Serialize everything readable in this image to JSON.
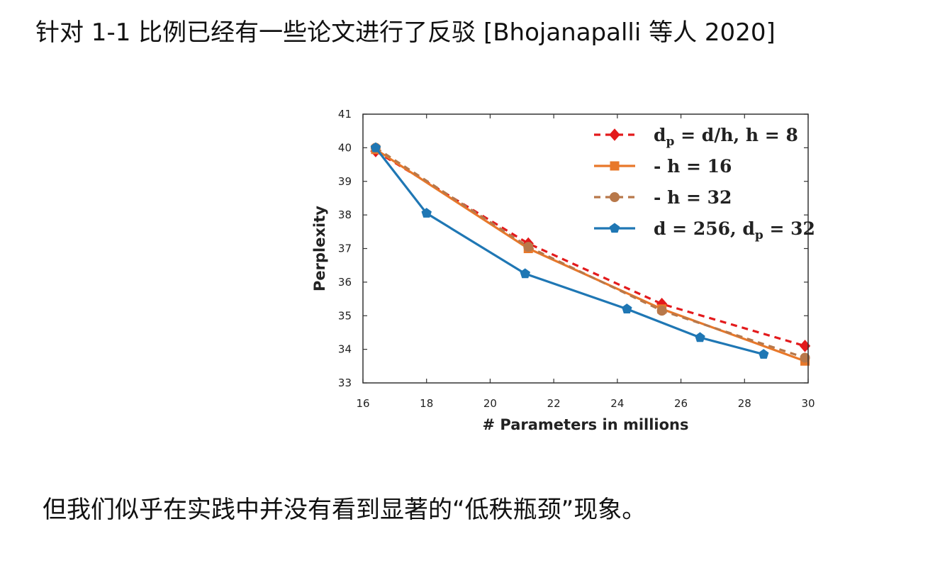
{
  "text": {
    "top": "针对 1-1 比例已经有一些论文进行了反驳 [Bhojanapalli 等人 2020]",
    "bottom": "但我们似乎在实践中并没有看到显著的“低秩瓶颈”现象。"
  },
  "chart_data": {
    "type": "line",
    "xlabel": "# Parameters in millions",
    "ylabel": "Perplexity",
    "xlim": [
      16,
      30
    ],
    "ylim": [
      33,
      41
    ],
    "xticks": [
      16,
      18,
      20,
      22,
      24,
      26,
      28,
      30
    ],
    "yticks": [
      33,
      34,
      35,
      36,
      37,
      38,
      39,
      40,
      41
    ],
    "grid": false,
    "legend_position": "top-right",
    "series": [
      {
        "name": "d_p = d/h, h = 8",
        "legend_parts": [
          "d",
          "p",
          " = d/h, h = 8"
        ],
        "color": "#e31a1c",
        "line_style": "dashed",
        "marker": "diamond",
        "x": [
          16.4,
          21.2,
          25.4,
          29.9
        ],
        "y": [
          39.9,
          37.15,
          35.35,
          34.1
        ]
      },
      {
        "name": "- h = 16",
        "legend_parts": [
          "- h = 16"
        ],
        "color": "#e8782a",
        "line_style": "solid",
        "marker": "square",
        "x": [
          16.4,
          21.2,
          25.4,
          29.9
        ],
        "y": [
          39.95,
          37.0,
          35.2,
          33.65
        ]
      },
      {
        "name": "- h = 32",
        "legend_parts": [
          "- h = 32"
        ],
        "color": "#b8784a",
        "line_style": "dashed",
        "marker": "circle",
        "x": [
          16.4,
          21.2,
          25.4,
          29.9
        ],
        "y": [
          40.0,
          37.05,
          35.15,
          33.75
        ]
      },
      {
        "name": "d = 256, d_p = 32",
        "legend_parts": [
          "d = 256, d",
          "p",
          " = 32"
        ],
        "color": "#1f77b4",
        "line_style": "solid",
        "marker": "pentagon",
        "x": [
          16.4,
          18.0,
          21.1,
          24.3,
          26.6,
          28.6
        ],
        "y": [
          40.0,
          38.05,
          36.25,
          35.2,
          34.35,
          33.85
        ]
      }
    ]
  }
}
